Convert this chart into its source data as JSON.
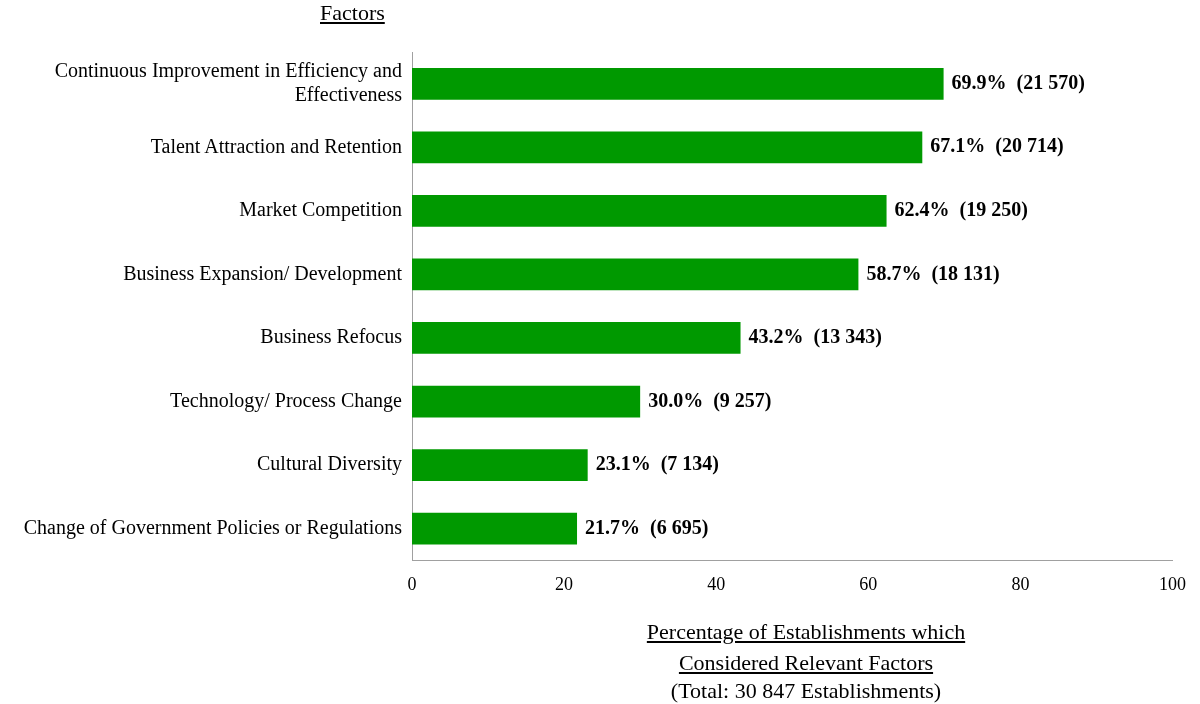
{
  "chart_data": {
    "type": "bar",
    "orientation": "horizontal",
    "ylabel": "Factors",
    "xlabel": "Percentage of Establishments which Considered Relevant Factors",
    "annotations": [
      "(Total: 30 847 Establishments)"
    ],
    "categories": [
      "Continuous Improvement in Efficiency and Effectiveness",
      "Talent Attraction and Retention",
      "Market Competition",
      "Business Expansion/ Development",
      "Business Refocus",
      "Technology/ Process Change",
      "Cultural Diversity",
      "Change of Government Policies or Regulations"
    ],
    "values": [
      69.9,
      67.1,
      62.4,
      58.7,
      43.2,
      30.0,
      23.1,
      21.7
    ],
    "value_labels": [
      "69.9%  (21 570)",
      "67.1%  (20 714)",
      "62.4%  (19 250)",
      "58.7%  (18 131)",
      "43.2%  (13 343)",
      "30.0%  (9 257)",
      "23.1%  (7 134)",
      "21.7%  (6 695)"
    ],
    "color": "#009900",
    "xlim": [
      0,
      100
    ],
    "xticks": [
      0,
      20,
      40,
      60,
      80,
      100
    ],
    "grid": false
  }
}
